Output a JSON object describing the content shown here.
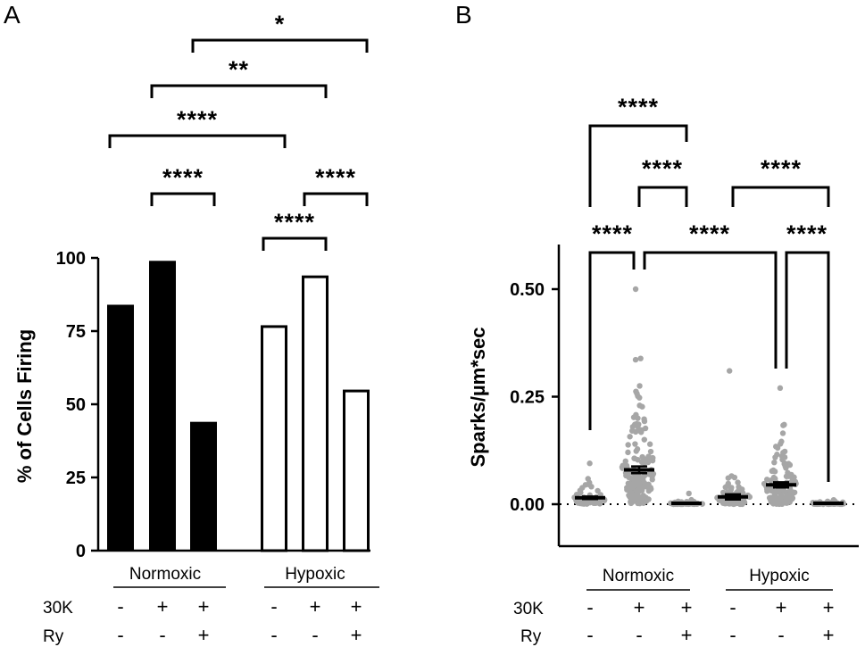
{
  "panels": {
    "a": "A",
    "b": "B"
  },
  "conditions": {
    "group1": "Normoxic",
    "group2": "Hypoxic",
    "row1_label": "30K",
    "row2_label": "Ry",
    "row1_signs": [
      "-",
      "+",
      "+",
      "-",
      "+",
      "+"
    ],
    "row2_signs": [
      "-",
      "-",
      "+",
      "-",
      "-",
      "+"
    ]
  },
  "colors": {
    "normoxic_bar": "#000000",
    "hypoxic_bar": "#ffffff",
    "dots": "#a6a6a6"
  },
  "chart_data": [
    {
      "type": "bar",
      "panel": "A",
      "ylabel": "% of Cells Firing",
      "ylim": [
        0,
        100
      ],
      "yticks": [
        0,
        25,
        50,
        75,
        100
      ],
      "categories": [
        "Normoxic -/-",
        "Normoxic +/-",
        "Normoxic +/+",
        "Hypoxic -/-",
        "Hypoxic +/-",
        "Hypoxic +/+"
      ],
      "values": [
        84,
        99,
        44,
        77,
        94,
        55
      ],
      "significance": [
        {
          "from": 1,
          "to": 2,
          "label": "****"
        },
        {
          "from": 3,
          "to": 4,
          "label": "****"
        },
        {
          "from": 4,
          "to": 5,
          "label": "****"
        },
        {
          "from": 0,
          "to": 3,
          "label": "****"
        },
        {
          "from": 1,
          "to": 4,
          "label": "**"
        },
        {
          "from": 2,
          "to": 5,
          "label": "*"
        }
      ]
    },
    {
      "type": "scatter",
      "panel": "B",
      "ylabel": "Sparks/µm*sec",
      "ylim": [
        -0.1,
        0.6
      ],
      "yticks": [
        0.0,
        0.25,
        0.5
      ],
      "ytick_labels": [
        "0.00",
        "0.25",
        "0.50"
      ],
      "categories": [
        "Normoxic -/-",
        "Normoxic +/-",
        "Normoxic +/+",
        "Hypoxic -/-",
        "Hypoxic +/-",
        "Hypoxic +/+"
      ],
      "means": [
        0.015,
        0.08,
        0.002,
        0.017,
        0.045,
        0.002
      ],
      "sem": [
        0.003,
        0.008,
        0.001,
        0.006,
        0.006,
        0.001
      ],
      "max_values": [
        0.095,
        0.5,
        0.025,
        0.31,
        0.27,
        0.01
      ],
      "significance": [
        {
          "from": 0,
          "to": 1,
          "label": "****"
        },
        {
          "from": 1,
          "to": 4,
          "label": "****"
        },
        {
          "from": 4,
          "to": 5,
          "label": "****"
        },
        {
          "from": 1,
          "to": 2,
          "label": "****"
        },
        {
          "from": 3,
          "to": 5,
          "label": "****"
        },
        {
          "from": 0,
          "to": 2,
          "label": "****"
        }
      ]
    }
  ]
}
